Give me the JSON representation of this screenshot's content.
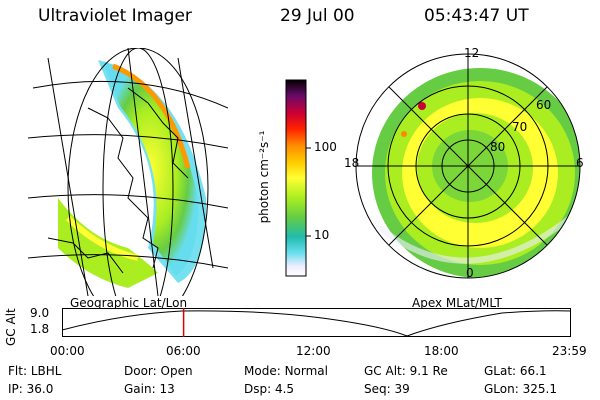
{
  "header": {
    "title": "Ultraviolet Imager",
    "date": "29 Jul 00",
    "time": "05:43:47 UT"
  },
  "panels": {
    "left_caption": "Geographic Lat/Lon",
    "right_caption": "Apex MLat/MLT"
  },
  "colorbar": {
    "unit_label": "photon cm⁻²s⁻¹",
    "ticks": [
      "100",
      "10"
    ],
    "colors": [
      "#000000",
      "#6a0a6a",
      "#cc0033",
      "#ff2200",
      "#ff8800",
      "#ffcc00",
      "#ffff33",
      "#aaee22",
      "#66cc44",
      "#22bbaa",
      "#66ddee",
      "#eeeeff",
      "#ffffff"
    ]
  },
  "polar": {
    "mlt_labels": {
      "top": "12",
      "left": "18",
      "right": "6",
      "bottom": "0"
    },
    "mlat_labels": [
      "60",
      "70",
      "80"
    ]
  },
  "altitude": {
    "label": "GC Alt",
    "y_ticks": [
      "9.0",
      "1.8"
    ],
    "time_ticks": [
      "00:00",
      "06:00",
      "12:00",
      "18:00",
      "23:59"
    ],
    "marker_time": "05:43:47",
    "marker_color": "#dd0000"
  },
  "status": {
    "row1": [
      {
        "k": "Flt:",
        "v": "LBHL"
      },
      {
        "k": "Door:",
        "v": "Open"
      },
      {
        "k": "Mode:",
        "v": "Normal"
      },
      {
        "k": "GC Alt:",
        "v": "9.1 Re"
      },
      {
        "k": "GLat:",
        "v": "66.1"
      }
    ],
    "row2": [
      {
        "k": "IP:",
        "v": "36.0"
      },
      {
        "k": "Gain:",
        "v": "13"
      },
      {
        "k": "Dsp:",
        "v": "4.5"
      },
      {
        "k": "Seq:",
        "v": "39"
      },
      {
        "k": "GLon:",
        "v": "325.1"
      }
    ]
  }
}
